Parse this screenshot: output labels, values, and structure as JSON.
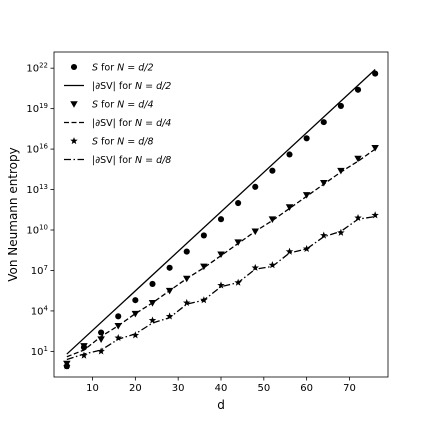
{
  "chart_data": {
    "type": "scatter",
    "xlabel": "d",
    "ylabel": "Von Neumann entropy",
    "xlim": [
      1,
      79
    ],
    "ylim_log10": [
      -0.9,
      23.2
    ],
    "yscale": "log",
    "x_ticks": [
      10,
      20,
      30,
      40,
      50,
      60,
      70
    ],
    "y_ticks": [
      {
        "exp": 1,
        "base": "10",
        "sup": "1"
      },
      {
        "exp": 4,
        "base": "10",
        "sup": "4"
      },
      {
        "exp": 7,
        "base": "10",
        "sup": "7"
      },
      {
        "exp": 10,
        "base": "10",
        "sup": "10"
      },
      {
        "exp": 13,
        "base": "10",
        "sup": "13"
      },
      {
        "exp": 16,
        "base": "10",
        "sup": "16"
      },
      {
        "exp": 19,
        "base": "10",
        "sup": "19"
      },
      {
        "exp": 22,
        "base": "10",
        "sup": "22"
      }
    ],
    "grid": false,
    "legend_position": "top-left",
    "series": [
      {
        "name": "S for N = d/2",
        "kind": "markers",
        "marker": "circle",
        "x": [
          4,
          8,
          12,
          16,
          20,
          24,
          28,
          32,
          36,
          40,
          44,
          48,
          52,
          56,
          60,
          64,
          68,
          72,
          76
        ],
        "log10_y": [
          -0.1,
          1.3,
          2.4,
          3.6,
          4.8,
          6.0,
          7.2,
          8.4,
          9.6,
          10.8,
          12.0,
          13.2,
          14.4,
          15.6,
          16.8,
          18.0,
          19.2,
          20.4,
          21.6
        ]
      },
      {
        "name": "|∂SV| for N = d/2",
        "kind": "line",
        "style": "solid",
        "x": [
          4,
          76
        ],
        "log10_y": [
          0.8,
          21.9
        ]
      },
      {
        "name": "S for N = d/4",
        "kind": "markers",
        "marker": "triangle-down",
        "x": [
          4,
          8,
          12,
          16,
          20,
          24,
          28,
          32,
          36,
          40,
          44,
          48,
          52,
          56,
          60,
          64,
          68,
          72,
          76
        ],
        "log10_y": [
          0.1,
          1.4,
          1.9,
          2.9,
          3.8,
          4.6,
          5.5,
          6.4,
          7.3,
          8.2,
          9.1,
          9.9,
          10.8,
          11.7,
          12.6,
          13.5,
          14.4,
          15.3,
          16.1
        ]
      },
      {
        "name": "|∂SV| for N = d/4",
        "kind": "line",
        "style": "dashed",
        "x": [
          4,
          8,
          12,
          16,
          20,
          24,
          28,
          32,
          36,
          40,
          44,
          48,
          52,
          56,
          60,
          64,
          68,
          72,
          76
        ],
        "log10_y": [
          0.6,
          1.1,
          2.1,
          2.9,
          3.8,
          4.6,
          5.5,
          6.4,
          7.2,
          8.1,
          9.0,
          9.9,
          10.7,
          11.6,
          12.5,
          13.4,
          14.3,
          15.1,
          16.0
        ]
      },
      {
        "name": "S for N = d/8",
        "kind": "markers",
        "marker": "star",
        "x": [
          4,
          8,
          12,
          16,
          20,
          24,
          28,
          32,
          36,
          40,
          44,
          48,
          52,
          56,
          60,
          64,
          68,
          72,
          76
        ],
        "log10_y": [
          -0.1,
          0.7,
          1.0,
          2.0,
          2.2,
          3.3,
          3.6,
          4.6,
          4.8,
          5.9,
          6.1,
          7.2,
          7.4,
          8.4,
          8.6,
          9.6,
          9.8,
          10.9,
          11.1
        ]
      },
      {
        "name": "|∂SV| for N = d/8",
        "kind": "line",
        "style": "dashdot",
        "x": [
          4,
          8,
          12,
          16,
          20,
          24,
          28,
          32,
          36,
          40,
          44,
          48,
          52,
          56,
          60,
          64,
          68,
          72,
          76
        ],
        "log10_y": [
          0.4,
          0.8,
          1.1,
          1.9,
          2.3,
          3.1,
          3.5,
          4.5,
          4.8,
          5.8,
          6.1,
          7.1,
          7.3,
          8.3,
          8.6,
          9.5,
          9.9,
          10.8,
          11.0
        ]
      }
    ],
    "legend": [
      {
        "series": 0,
        "prefix": "S",
        "mid": " for ",
        "var": "N",
        "eq": " = ",
        "frac": "d/2"
      },
      {
        "series": 1,
        "prefix": "|∂SV|",
        "mid": " for ",
        "var": "N",
        "eq": " = ",
        "frac": "d/2"
      },
      {
        "series": 2,
        "prefix": "S",
        "mid": " for ",
        "var": "N",
        "eq": " = ",
        "frac": "d/4"
      },
      {
        "series": 3,
        "prefix": "|∂SV|",
        "mid": " for ",
        "var": "N",
        "eq": " = ",
        "frac": "d/4"
      },
      {
        "series": 4,
        "prefix": "S",
        "mid": " for ",
        "var": "N",
        "eq": " = ",
        "frac": "d/8"
      },
      {
        "series": 5,
        "prefix": "|∂SV|",
        "mid": " for ",
        "var": "N",
        "eq": " = ",
        "frac": "d/8"
      }
    ]
  }
}
